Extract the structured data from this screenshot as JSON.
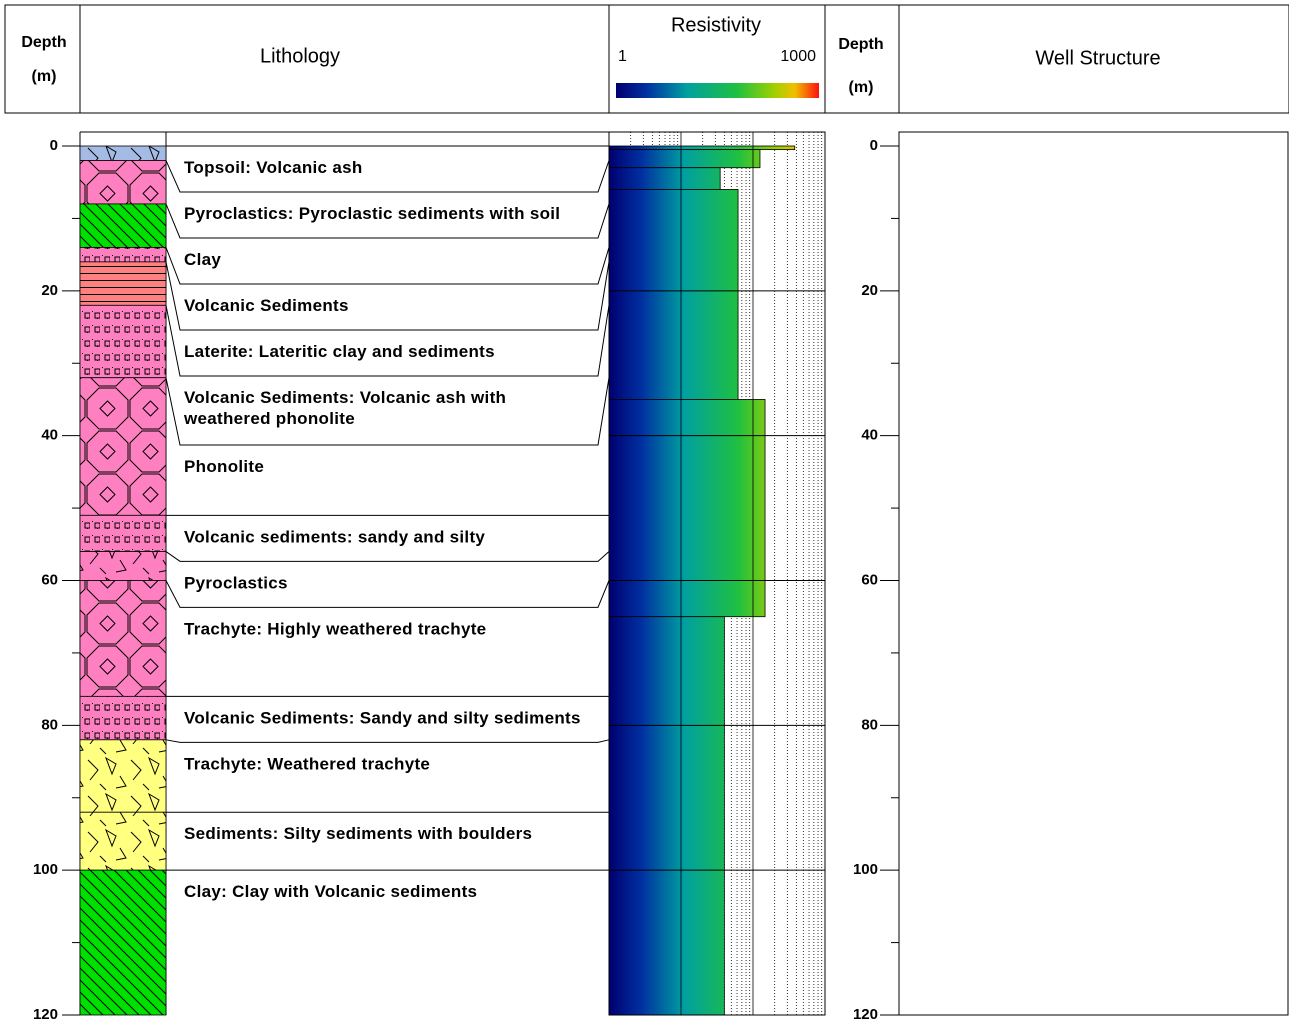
{
  "header": {
    "depth": "Depth",
    "unit": "(m)",
    "lithology": "Lithology",
    "resistivity": "Resistivity",
    "depth_right": "Depth",
    "unit_right": "(m)",
    "well": "Well Structure"
  },
  "chart_data": {
    "type": "well-log",
    "ylim": [
      0,
      120
    ],
    "yticks": [
      0,
      20,
      40,
      60,
      80,
      100,
      120
    ],
    "yminor": [
      10,
      30,
      50,
      70,
      90,
      110
    ],
    "xlim": [
      1,
      1000
    ],
    "xgrid": [
      10,
      100
    ],
    "log_x": true,
    "layers": [
      {
        "top": 0,
        "bottom": 2,
        "label": "Topsoil: Volcanic ash",
        "color": "#a4bce4",
        "pattern": "pyro"
      },
      {
        "top": 2,
        "bottom": 8,
        "label": "Pyroclastics: Pyroclastic sediments with soil",
        "color": "#ff80c0",
        "pattern": "octagon"
      },
      {
        "top": 8,
        "bottom": 14,
        "label": "Clay",
        "color": "#00e000",
        "pattern": "hatch"
      },
      {
        "top": 14,
        "bottom": 16,
        "label": "Volcanic Sediments",
        "color": "#ff80c0",
        "pattern": "dots"
      },
      {
        "top": 16,
        "bottom": 22,
        "label": "Laterite: Lateritic clay and sediments",
        "color": "#ff8080",
        "pattern": "lines"
      },
      {
        "top": 22,
        "bottom": 32,
        "label": "Volcanic Sediments: Volcanic ash with weathered phonolite",
        "color": "#ff80c0",
        "pattern": "dots"
      },
      {
        "top": 32,
        "bottom": 51,
        "label": "Phonolite",
        "color": "#ff80c0",
        "pattern": "octagon"
      },
      {
        "top": 51,
        "bottom": 56,
        "label": "Volcanic sediments: sandy and silty",
        "color": "#ff80c0",
        "pattern": "dots"
      },
      {
        "top": 56,
        "bottom": 60,
        "label": "Pyroclastics",
        "color": "#ff80c0",
        "pattern": "pyro"
      },
      {
        "top": 60,
        "bottom": 76,
        "label": "Trachyte: Highly weathered trachyte",
        "color": "#ff80c0",
        "pattern": "octagon"
      },
      {
        "top": 76,
        "bottom": 82,
        "label": "Volcanic Sediments: Sandy and silty sediments",
        "color": "#ff80c0",
        "pattern": "dots"
      },
      {
        "top": 82,
        "bottom": 92,
        "label": "Trachyte: Weathered trachyte",
        "color": "#ffff80",
        "pattern": "pyro"
      },
      {
        "top": 92,
        "bottom": 100,
        "label": "Sediments: Silty sediments with boulders",
        "color": "#ffff80",
        "pattern": "pyro"
      },
      {
        "top": 100,
        "bottom": 120,
        "label": "Clay: Clay with Volcanic sediments",
        "color": "#00e000",
        "pattern": "hatch"
      }
    ],
    "resistivity": [
      {
        "top": 0,
        "bottom": 0.5,
        "value": 380
      },
      {
        "top": 0.5,
        "bottom": 3,
        "value": 125
      },
      {
        "top": 3,
        "bottom": 6,
        "value": 35
      },
      {
        "top": 6,
        "bottom": 35,
        "value": 62
      },
      {
        "top": 35,
        "bottom": 65,
        "value": 147
      },
      {
        "top": 65,
        "bottom": 120,
        "value": 40
      }
    ]
  }
}
